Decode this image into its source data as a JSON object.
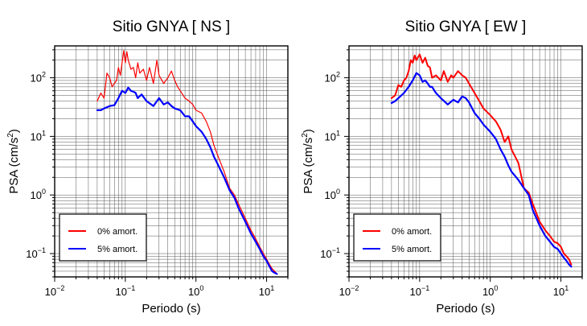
{
  "chart_data": [
    {
      "type": "line",
      "title": "Sitio GNYA [ NS ]",
      "xlabel": "Periodo (s)",
      "ylabel_main": "PSA (cm/s",
      "ylabel_sup": "2",
      "ylabel_end": ")",
      "xscale": "log",
      "yscale": "log",
      "xlim": [
        0.01,
        20
      ],
      "ylim": [
        0.04,
        350
      ],
      "x_ticks": [
        {
          "base": "10",
          "exp": "−2"
        },
        {
          "base": "10",
          "exp": "−1"
        },
        {
          "base": "10",
          "exp": "0"
        },
        {
          "base": "10",
          "exp": "1"
        }
      ],
      "y_ticks": [
        {
          "base": "10",
          "exp": "−1"
        },
        {
          "base": "10",
          "exp": "0"
        },
        {
          "base": "10",
          "exp": "1"
        },
        {
          "base": "10",
          "exp": "2"
        }
      ],
      "grid": true,
      "legend_position": "bottom-left",
      "series": [
        {
          "name": "0% amort.",
          "color": "#ff0000",
          "x": [
            0.04,
            0.045,
            0.05,
            0.055,
            0.06,
            0.065,
            0.07,
            0.075,
            0.08,
            0.085,
            0.09,
            0.095,
            0.1,
            0.105,
            0.11,
            0.12,
            0.13,
            0.14,
            0.15,
            0.16,
            0.18,
            0.2,
            0.22,
            0.25,
            0.28,
            0.3,
            0.35,
            0.4,
            0.45,
            0.5,
            0.55,
            0.6,
            0.7,
            0.8,
            0.9,
            1.0,
            1.2,
            1.4,
            1.6,
            1.8,
            2.0,
            2.5,
            3.0,
            3.5,
            4.0,
            5.0,
            6.0,
            7.0,
            8.0,
            9.0,
            10.0,
            11.0,
            12.0,
            13.0,
            14.0
          ],
          "values": [
            40,
            55,
            45,
            120,
            100,
            70,
            80,
            90,
            150,
            110,
            180,
            290,
            180,
            280,
            200,
            140,
            150,
            100,
            180,
            120,
            140,
            90,
            150,
            80,
            200,
            110,
            80,
            100,
            130,
            90,
            70,
            60,
            45,
            40,
            35,
            28,
            25,
            18,
            12,
            7,
            5,
            2.5,
            1.3,
            1.0,
            0.7,
            0.4,
            0.25,
            0.18,
            0.13,
            0.1,
            0.08,
            0.065,
            0.055,
            0.05,
            0.045
          ]
        },
        {
          "name": "5% amort.",
          "color": "#0000ff",
          "x": [
            0.04,
            0.045,
            0.05,
            0.06,
            0.07,
            0.08,
            0.09,
            0.1,
            0.11,
            0.12,
            0.13,
            0.14,
            0.15,
            0.17,
            0.2,
            0.25,
            0.3,
            0.35,
            0.4,
            0.45,
            0.5,
            0.6,
            0.7,
            0.8,
            0.9,
            1.0,
            1.2,
            1.4,
            1.6,
            1.8,
            2.0,
            2.5,
            3.0,
            3.5,
            4.0,
            5.0,
            6.0,
            7.0,
            8.0,
            9.0,
            10.0,
            11.0,
            12.0,
            13.0,
            14.0
          ],
          "values": [
            28,
            28,
            30,
            33,
            34,
            45,
            60,
            55,
            68,
            60,
            58,
            55,
            45,
            52,
            40,
            33,
            45,
            35,
            38,
            33,
            30,
            28,
            22,
            22,
            18,
            15,
            12,
            9,
            6.5,
            4.5,
            3.5,
            2.0,
            1.2,
            0.9,
            0.6,
            0.35,
            0.22,
            0.16,
            0.12,
            0.09,
            0.075,
            0.06,
            0.05,
            0.047,
            0.045
          ]
        }
      ]
    },
    {
      "type": "line",
      "title": "Sitio GNYA [ EW ]",
      "xlabel": "Periodo (s)",
      "ylabel_main": "PSA (cm/s",
      "ylabel_sup": "2",
      "ylabel_end": ")",
      "xscale": "log",
      "yscale": "log",
      "xlim": [
        0.01,
        20
      ],
      "ylim": [
        0.04,
        350
      ],
      "x_ticks": [
        {
          "base": "10",
          "exp": "−2"
        },
        {
          "base": "10",
          "exp": "−1"
        },
        {
          "base": "10",
          "exp": "0"
        },
        {
          "base": "10",
          "exp": "1"
        }
      ],
      "y_ticks": [
        {
          "base": "10",
          "exp": "−1"
        },
        {
          "base": "10",
          "exp": "0"
        },
        {
          "base": "10",
          "exp": "1"
        },
        {
          "base": "10",
          "exp": "2"
        }
      ],
      "grid": true,
      "legend_position": "bottom-left",
      "series": [
        {
          "name": "0% amort.",
          "color": "#ff0000",
          "x": [
            0.04,
            0.045,
            0.05,
            0.055,
            0.06,
            0.065,
            0.07,
            0.075,
            0.08,
            0.085,
            0.09,
            0.1,
            0.11,
            0.12,
            0.13,
            0.14,
            0.15,
            0.17,
            0.2,
            0.22,
            0.25,
            0.28,
            0.3,
            0.35,
            0.4,
            0.45,
            0.5,
            0.6,
            0.7,
            0.8,
            1.0,
            1.2,
            1.4,
            1.6,
            1.8,
            2.0,
            2.5,
            3.0,
            3.5,
            4.0,
            5.0,
            6.0,
            7.0,
            8.0,
            9.0,
            10.0,
            11.0,
            12.0,
            13.0,
            14.0
          ],
          "values": [
            45,
            50,
            75,
            70,
            90,
            100,
            130,
            200,
            180,
            240,
            200,
            250,
            180,
            220,
            160,
            150,
            100,
            110,
            90,
            130,
            85,
            110,
            100,
            130,
            110,
            100,
            80,
            55,
            40,
            30,
            23,
            18,
            13,
            8,
            10,
            6,
            3.5,
            1.3,
            1.1,
            0.7,
            0.35,
            0.25,
            0.2,
            0.16,
            0.15,
            0.13,
            0.1,
            0.09,
            0.08,
            0.065
          ]
        },
        {
          "name": "5% amort.",
          "color": "#0000ff",
          "x": [
            0.04,
            0.045,
            0.05,
            0.06,
            0.07,
            0.08,
            0.09,
            0.1,
            0.11,
            0.12,
            0.13,
            0.14,
            0.15,
            0.17,
            0.2,
            0.25,
            0.3,
            0.35,
            0.4,
            0.45,
            0.5,
            0.6,
            0.7,
            0.8,
            1.0,
            1.2,
            1.4,
            1.6,
            1.8,
            2.0,
            2.5,
            3.0,
            3.5,
            4.0,
            5.0,
            6.0,
            7.0,
            8.0,
            9.0,
            10.0,
            11.0,
            12.0,
            13.0,
            14.0
          ],
          "values": [
            37,
            40,
            45,
            55,
            70,
            90,
            120,
            110,
            85,
            90,
            80,
            70,
            70,
            55,
            45,
            35,
            42,
            38,
            48,
            45,
            38,
            25,
            20,
            16,
            12,
            9,
            6,
            4.5,
            3.2,
            2.5,
            1.8,
            1.3,
            1.0,
            0.55,
            0.3,
            0.2,
            0.16,
            0.13,
            0.12,
            0.1,
            0.085,
            0.075,
            0.065,
            0.06
          ]
        }
      ]
    }
  ]
}
